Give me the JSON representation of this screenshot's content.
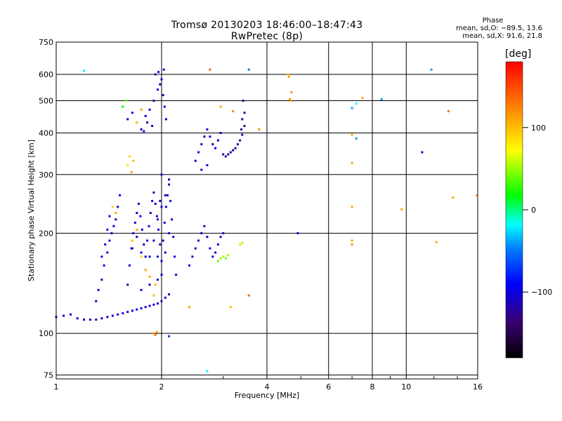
{
  "header": {
    "title_line1": "Tromsø 20130203 18:46:00–18:47:43",
    "title_line2": "RwPretec (8p)",
    "phase_title": "Phase",
    "phase_o": "mean, sd,O: −89.5, 13.6",
    "phase_x": "mean, sd,X:  91.6, 21.8"
  },
  "colorbar": {
    "unit": "[deg]",
    "ticks": [
      {
        "label": "100",
        "value": 100
      },
      {
        "label": "0",
        "value": 0
      },
      {
        "label": "−100",
        "value": -100
      }
    ],
    "range": [
      -180,
      180
    ]
  },
  "chart_data": {
    "type": "scatter",
    "xlabel": "Frequency [MHz]",
    "ylabel": "Stationary phase Virtual Height [km]",
    "x_scale": "log",
    "y_scale": "log",
    "xlim": [
      1,
      16
    ],
    "ylim": [
      73,
      750
    ],
    "grid": true,
    "x_ticks": [
      {
        "label": "1",
        "value": 1
      },
      {
        "label": "2",
        "value": 2
      },
      {
        "label": "4",
        "value": 4
      },
      {
        "label": "6",
        "value": 6
      },
      {
        "label": "8",
        "value": 8
      },
      {
        "label": "10",
        "value": 10
      },
      {
        "label": "16",
        "value": 16
      }
    ],
    "y_ticks": [
      {
        "label": "75",
        "value": 75
      },
      {
        "label": "100",
        "value": 100
      },
      {
        "label": "200",
        "value": 200
      },
      {
        "label": "300",
        "value": 300
      },
      {
        "label": "400",
        "value": 400
      },
      {
        "label": "500",
        "value": 500
      },
      {
        "label": "600",
        "value": 600
      },
      {
        "label": "750",
        "value": 750
      }
    ],
    "points": [
      [
        1.0,
        112,
        -105
      ],
      [
        1.05,
        113,
        -100
      ],
      [
        1.1,
        114,
        -95
      ],
      [
        1.15,
        111,
        -110
      ],
      [
        1.2,
        110,
        -105
      ],
      [
        1.25,
        110,
        -100
      ],
      [
        1.3,
        110,
        -110
      ],
      [
        1.35,
        111,
        -105
      ],
      [
        1.4,
        112,
        -100
      ],
      [
        1.45,
        113,
        -105
      ],
      [
        1.5,
        114,
        -110
      ],
      [
        1.55,
        115,
        -100
      ],
      [
        1.6,
        116,
        -105
      ],
      [
        1.65,
        117,
        -95
      ],
      [
        1.7,
        118,
        -105
      ],
      [
        1.75,
        119,
        -100
      ],
      [
        1.8,
        120,
        -110
      ],
      [
        1.85,
        121,
        -105
      ],
      [
        1.9,
        122,
        -100
      ],
      [
        1.95,
        123,
        -105
      ],
      [
        2.0,
        125,
        -110
      ],
      [
        2.05,
        128,
        -100
      ],
      [
        2.1,
        131,
        -105
      ],
      [
        1.3,
        125,
        -105
      ],
      [
        1.32,
        135,
        -100
      ],
      [
        1.35,
        145,
        -110
      ],
      [
        1.37,
        160,
        -105
      ],
      [
        1.4,
        175,
        -100
      ],
      [
        1.42,
        190,
        -105
      ],
      [
        1.44,
        200,
        -110
      ],
      [
        1.46,
        210,
        -100
      ],
      [
        1.48,
        220,
        -105
      ],
      [
        1.5,
        240,
        -110
      ],
      [
        1.52,
        260,
        -100
      ],
      [
        1.35,
        170,
        -105
      ],
      [
        1.38,
        185,
        -100
      ],
      [
        1.4,
        205,
        -95
      ],
      [
        1.42,
        225,
        -105
      ],
      [
        1.6,
        140,
        -105
      ],
      [
        1.62,
        160,
        -100
      ],
      [
        1.64,
        180,
        -110
      ],
      [
        1.66,
        200,
        -105
      ],
      [
        1.68,
        215,
        -100
      ],
      [
        1.7,
        230,
        -105
      ],
      [
        1.72,
        245,
        -110
      ],
      [
        1.74,
        225,
        -100
      ],
      [
        1.76,
        205,
        -105
      ],
      [
        1.78,
        185,
        -110
      ],
      [
        1.8,
        170,
        -100
      ],
      [
        1.82,
        190,
        -105
      ],
      [
        1.84,
        210,
        -100
      ],
      [
        1.86,
        230,
        -110
      ],
      [
        1.88,
        250,
        -105
      ],
      [
        1.9,
        265,
        -100
      ],
      [
        1.92,
        245,
        -105
      ],
      [
        1.94,
        225,
        -110
      ],
      [
        1.96,
        205,
        -100
      ],
      [
        1.98,
        185,
        -105
      ],
      [
        2.0,
        165,
        -100
      ],
      [
        2.02,
        190,
        -110
      ],
      [
        2.04,
        215,
        -105
      ],
      [
        2.06,
        240,
        -100
      ],
      [
        2.08,
        260,
        -105
      ],
      [
        2.1,
        280,
        -110
      ],
      [
        2.12,
        250,
        -100
      ],
      [
        2.14,
        220,
        -105
      ],
      [
        2.16,
        195,
        -110
      ],
      [
        2.18,
        170,
        -100
      ],
      [
        2.2,
        150,
        -105
      ],
      [
        1.65,
        180,
        -105
      ],
      [
        1.7,
        195,
        -110
      ],
      [
        1.75,
        175,
        -100
      ],
      [
        1.8,
        155,
        -105
      ],
      [
        1.85,
        170,
        -100
      ],
      [
        1.9,
        190,
        -110
      ],
      [
        1.95,
        170,
        -105
      ],
      [
        2.0,
        150,
        -100
      ],
      [
        2.05,
        175,
        -105
      ],
      [
        2.1,
        200,
        -110
      ],
      [
        1.75,
        135,
        -100
      ],
      [
        1.85,
        140,
        -105
      ],
      [
        1.95,
        145,
        -110
      ],
      [
        1.95,
        220,
        -105
      ],
      [
        2.0,
        240,
        -100
      ],
      [
        2.05,
        260,
        -110
      ],
      [
        2.1,
        290,
        -105
      ],
      [
        2.0,
        300,
        -100
      ],
      [
        1.98,
        250,
        -105
      ],
      [
        2.4,
        160,
        -105
      ],
      [
        2.45,
        170,
        -100
      ],
      [
        2.5,
        180,
        -110
      ],
      [
        2.55,
        190,
        -105
      ],
      [
        2.6,
        200,
        -100
      ],
      [
        2.65,
        210,
        -105
      ],
      [
        2.7,
        195,
        -110
      ],
      [
        2.75,
        180,
        -100
      ],
      [
        2.8,
        170,
        -105
      ],
      [
        2.85,
        175,
        -100
      ],
      [
        2.9,
        185,
        -110
      ],
      [
        2.95,
        195,
        -105
      ],
      [
        3.0,
        200,
        -100
      ],
      [
        1.6,
        440,
        -105
      ],
      [
        1.65,
        460,
        -100
      ],
      [
        1.7,
        430,
        -110
      ],
      [
        1.75,
        410,
        -105
      ],
      [
        1.8,
        450,
        -100
      ],
      [
        1.85,
        470,
        -105
      ],
      [
        1.9,
        500,
        -110
      ],
      [
        1.95,
        540,
        -100
      ],
      [
        2.0,
        580,
        -105
      ],
      [
        2.02,
        520,
        -110
      ],
      [
        2.04,
        480,
        -100
      ],
      [
        2.06,
        440,
        -105
      ],
      [
        1.92,
        600,
        -100
      ],
      [
        1.96,
        610,
        -105
      ],
      [
        1.98,
        560,
        -110
      ],
      [
        2.03,
        620,
        -100
      ],
      [
        1.88,
        420,
        -105
      ],
      [
        1.82,
        430,
        -110
      ],
      [
        1.78,
        405,
        -100
      ],
      [
        2.5,
        330,
        -105
      ],
      [
        2.55,
        350,
        -100
      ],
      [
        2.6,
        370,
        -110
      ],
      [
        2.65,
        390,
        -105
      ],
      [
        2.7,
        410,
        -100
      ],
      [
        2.75,
        390,
        -105
      ],
      [
        2.8,
        370,
        -110
      ],
      [
        2.85,
        360,
        -100
      ],
      [
        2.9,
        380,
        -105
      ],
      [
        2.95,
        400,
        -110
      ],
      [
        2.6,
        310,
        -105
      ],
      [
        2.7,
        320,
        -100
      ],
      [
        3.0,
        345,
        -120
      ],
      [
        3.05,
        340,
        -125
      ],
      [
        3.1,
        345,
        -120
      ],
      [
        3.15,
        350,
        -125
      ],
      [
        3.2,
        355,
        -120
      ],
      [
        3.25,
        360,
        -125
      ],
      [
        3.3,
        370,
        -120
      ],
      [
        3.35,
        380,
        -125
      ],
      [
        3.4,
        395,
        -120
      ],
      [
        3.45,
        420,
        -125
      ],
      [
        3.45,
        460,
        -120
      ],
      [
        3.42,
        500,
        -125
      ],
      [
        3.4,
        440,
        -120
      ],
      [
        3.38,
        410,
        -125
      ],
      [
        1.2,
        615,
        -20
      ],
      [
        1.55,
        480,
        20
      ],
      [
        1.58,
        500,
        40
      ],
      [
        1.7,
        430,
        90
      ],
      [
        1.75,
        470,
        110
      ],
      [
        1.6,
        320,
        80
      ],
      [
        1.62,
        340,
        90
      ],
      [
        1.64,
        305,
        110
      ],
      [
        1.66,
        330,
        100
      ],
      [
        1.65,
        190,
        100
      ],
      [
        1.7,
        205,
        110
      ],
      [
        1.75,
        170,
        90
      ],
      [
        1.8,
        155,
        95
      ],
      [
        1.85,
        148,
        110
      ],
      [
        1.9,
        130,
        100
      ],
      [
        1.92,
        140,
        105
      ],
      [
        1.45,
        240,
        90
      ],
      [
        1.48,
        230,
        110
      ],
      [
        1.9,
        100,
        120
      ],
      [
        1.92,
        99,
        130
      ],
      [
        1.94,
        101,
        110
      ],
      [
        2.1,
        98,
        -70
      ],
      [
        2.75,
        620,
        140
      ],
      [
        2.95,
        480,
        110
      ],
      [
        3.2,
        465,
        120
      ],
      [
        3.55,
        620,
        -50
      ],
      [
        3.8,
        410,
        120
      ],
      [
        3.55,
        130,
        140
      ],
      [
        2.9,
        165,
        40
      ],
      [
        2.95,
        168,
        50
      ],
      [
        3.0,
        170,
        55
      ],
      [
        3.05,
        168,
        45
      ],
      [
        3.1,
        172,
        50
      ],
      [
        3.35,
        185,
        60
      ],
      [
        3.4,
        187,
        55
      ],
      [
        2.4,
        120,
        110
      ],
      [
        3.15,
        120,
        100
      ],
      [
        4.6,
        600,
        100
      ],
      [
        4.62,
        590,
        110
      ],
      [
        4.65,
        505,
        120
      ],
      [
        4.68,
        500,
        110
      ],
      [
        4.7,
        530,
        120
      ],
      [
        7.0,
        475,
        -40
      ],
      [
        7.2,
        490,
        -20
      ],
      [
        7.5,
        510,
        110
      ],
      [
        8.5,
        505,
        -40
      ],
      [
        7.0,
        395,
        110
      ],
      [
        7.2,
        385,
        -40
      ],
      [
        7.0,
        325,
        110
      ],
      [
        7.0,
        240,
        110
      ],
      [
        7.0,
        190,
        110
      ],
      [
        7.0,
        185,
        120
      ],
      [
        9.7,
        236,
        110
      ],
      [
        11.1,
        350,
        -100
      ],
      [
        11.8,
        620,
        -40
      ],
      [
        12.2,
        188,
        110
      ],
      [
        13.2,
        465,
        130
      ],
      [
        13.6,
        256,
        110
      ],
      [
        15.9,
        260,
        110
      ],
      [
        4.9,
        200,
        -110
      ],
      [
        2.7,
        77,
        -20
      ]
    ]
  }
}
